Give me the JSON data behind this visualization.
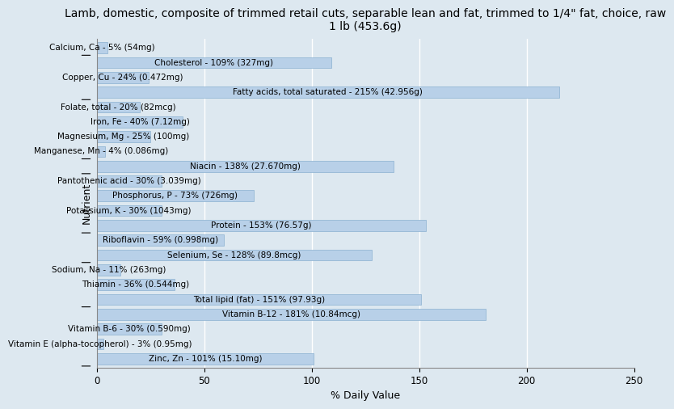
{
  "title": "Lamb, domestic, composite of trimmed retail cuts, separable lean and fat, trimmed to 1/4\" fat, choice, raw\n1 lb (453.6g)",
  "xlabel": "% Daily Value",
  "ylabel": "Nutrient",
  "xlim": [
    0,
    250
  ],
  "background_color": "#dde8f0",
  "plot_bg_color": "#dde8f0",
  "bar_color": "#b8d0e8",
  "bar_edge_color": "#8ab0d0",
  "nutrients": [
    {
      "name": "Calcium, Ca - 5% (54mg)",
      "value": 5
    },
    {
      "name": "Cholesterol - 109% (327mg)",
      "value": 109
    },
    {
      "name": "Copper, Cu - 24% (0.472mg)",
      "value": 24
    },
    {
      "name": "Fatty acids, total saturated - 215% (42.956g)",
      "value": 215
    },
    {
      "name": "Folate, total - 20% (82mcg)",
      "value": 20
    },
    {
      "name": "Iron, Fe - 40% (7.12mg)",
      "value": 40
    },
    {
      "name": "Magnesium, Mg - 25% (100mg)",
      "value": 25
    },
    {
      "name": "Manganese, Mn - 4% (0.086mg)",
      "value": 4
    },
    {
      "name": "Niacin - 138% (27.670mg)",
      "value": 138
    },
    {
      "name": "Pantothenic acid - 30% (3.039mg)",
      "value": 30
    },
    {
      "name": "Phosphorus, P - 73% (726mg)",
      "value": 73
    },
    {
      "name": "Potassium, K - 30% (1043mg)",
      "value": 30
    },
    {
      "name": "Protein - 153% (76.57g)",
      "value": 153
    },
    {
      "name": "Riboflavin - 59% (0.998mg)",
      "value": 59
    },
    {
      "name": "Selenium, Se - 128% (89.8mcg)",
      "value": 128
    },
    {
      "name": "Sodium, Na - 11% (263mg)",
      "value": 11
    },
    {
      "name": "Thiamin - 36% (0.544mg)",
      "value": 36
    },
    {
      "name": "Total lipid (fat) - 151% (97.93g)",
      "value": 151
    },
    {
      "name": "Vitamin B-12 - 181% (10.84mcg)",
      "value": 181
    },
    {
      "name": "Vitamin B-6 - 30% (0.590mg)",
      "value": 30
    },
    {
      "name": "Vitamin E (alpha-tocopherol) - 3% (0.95mg)",
      "value": 3
    },
    {
      "name": "Zinc, Zn - 101% (15.10mg)",
      "value": 101
    }
  ],
  "xticks": [
    0,
    50,
    100,
    150,
    200,
    250
  ],
  "grid_color": "#ffffff",
  "title_fontsize": 10,
  "label_fontsize": 7.5,
  "axis_label_fontsize": 9,
  "bar_height": 0.75
}
